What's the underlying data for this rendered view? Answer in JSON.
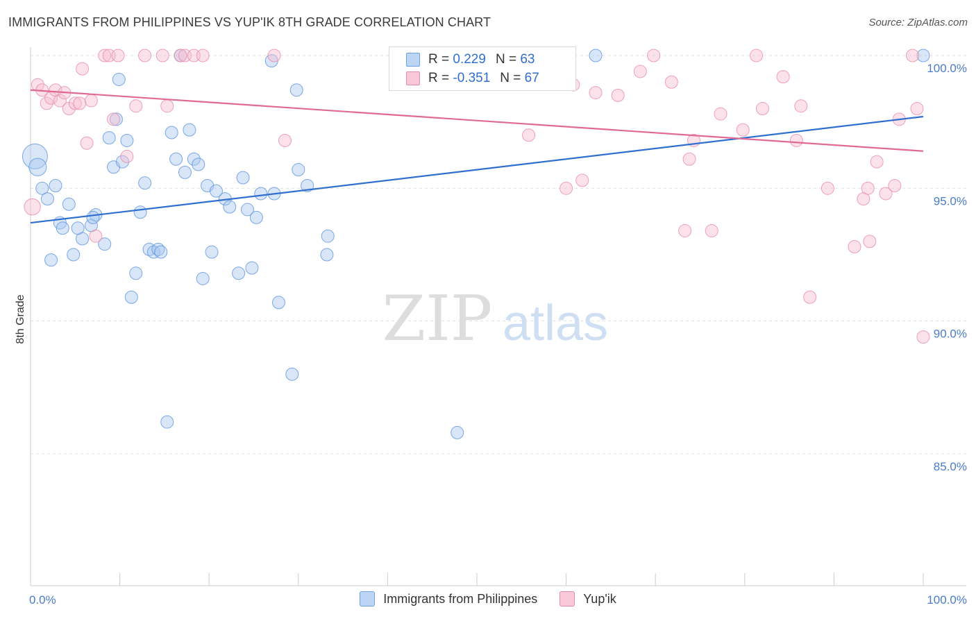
{
  "title": "IMMIGRANTS FROM PHILIPPINES VS YUP'IK 8TH GRADE CORRELATION CHART",
  "source": "Source: ZipAtlas.com",
  "watermark": {
    "zip": "ZIP",
    "atlas": "atlas"
  },
  "legend": {
    "r_label": "R =",
    "n_label": "N =",
    "rows": [
      {
        "r": "0.229",
        "n": "63"
      },
      {
        "r": "-0.351",
        "n": "67"
      }
    ]
  },
  "chart_data": {
    "type": "scatter",
    "title": "IMMIGRANTS FROM PHILIPPINES VS YUP'IK 8TH GRADE CORRELATION CHART",
    "xlabel": "",
    "ylabel": "8th Grade",
    "xlim": [
      0,
      100
    ],
    "ylim": [
      80.5,
      100.8
    ],
    "x_tick_labels": [
      "0.0%",
      "100.0%"
    ],
    "y_ticks": [
      {
        "value": 100,
        "label": "100.0%"
      },
      {
        "value": 95,
        "label": "95.0%"
      },
      {
        "value": 90,
        "label": "90.0%"
      },
      {
        "value": 85,
        "label": "85.0%"
      }
    ],
    "grid": "horizontal dashed",
    "legend_position": "top-center and bottom",
    "series": [
      {
        "name": "Immigrants from Philippines",
        "color": "#5b93e0",
        "fill": "#a9c8f0",
        "trend": {
          "x": [
            0,
            100
          ],
          "y": [
            93.7,
            97.7
          ],
          "color": "#2f6fd0"
        },
        "points": [
          [
            0.5,
            96.2,
            2
          ],
          [
            0.8,
            95.8,
            1.4
          ],
          [
            1.3,
            95.0,
            1
          ],
          [
            1.9,
            94.6,
            1
          ],
          [
            2.3,
            92.3,
            1
          ],
          [
            2.8,
            95.1,
            1
          ],
          [
            3.3,
            93.7,
            1
          ],
          [
            3.6,
            93.5,
            1
          ],
          [
            4.3,
            94.4,
            1
          ],
          [
            4.8,
            92.5,
            1
          ],
          [
            5.8,
            93.1,
            1
          ],
          [
            5.3,
            93.5,
            1
          ],
          [
            6.8,
            93.6,
            1
          ],
          [
            7.3,
            94.0,
            1
          ],
          [
            7.0,
            93.9,
            1
          ],
          [
            8.3,
            92.9,
            1
          ],
          [
            8.8,
            96.9,
            1
          ],
          [
            9.3,
            95.8,
            1
          ],
          [
            9.6,
            97.6,
            1
          ],
          [
            9.9,
            99.1,
            1
          ],
          [
            10.3,
            96.0,
            1
          ],
          [
            10.8,
            96.8,
            1
          ],
          [
            11.3,
            90.9,
            1
          ],
          [
            11.8,
            91.8,
            1
          ],
          [
            12.3,
            94.1,
            1
          ],
          [
            12.8,
            95.2,
            1
          ],
          [
            13.3,
            92.7,
            1
          ],
          [
            13.8,
            92.6,
            1
          ],
          [
            14.3,
            92.7,
            1
          ],
          [
            14.6,
            92.6,
            1
          ],
          [
            15.3,
            86.2,
            1
          ],
          [
            15.8,
            97.1,
            1
          ],
          [
            16.3,
            96.1,
            1
          ],
          [
            16.8,
            100.0,
            1
          ],
          [
            17.3,
            95.6,
            1
          ],
          [
            17.8,
            97.2,
            1
          ],
          [
            18.3,
            96.1,
            1
          ],
          [
            18.8,
            95.9,
            1
          ],
          [
            19.3,
            91.6,
            1
          ],
          [
            19.8,
            95.1,
            1
          ],
          [
            20.3,
            92.6,
            1
          ],
          [
            20.8,
            94.9,
            1
          ],
          [
            21.8,
            94.6,
            1
          ],
          [
            22.3,
            94.3,
            1
          ],
          [
            23.3,
            91.8,
            1
          ],
          [
            23.8,
            95.4,
            1
          ],
          [
            24.3,
            94.2,
            1
          ],
          [
            24.8,
            92.0,
            1
          ],
          [
            25.3,
            93.9,
            1
          ],
          [
            25.8,
            94.8,
            1
          ],
          [
            27.3,
            94.8,
            1
          ],
          [
            27.0,
            99.8,
            1
          ],
          [
            27.8,
            90.7,
            1
          ],
          [
            29.3,
            88.0,
            1
          ],
          [
            29.8,
            98.7,
            1
          ],
          [
            30.0,
            95.7,
            1
          ],
          [
            31.0,
            95.1,
            1
          ],
          [
            33.3,
            93.2,
            1
          ],
          [
            33.2,
            92.5,
            1
          ],
          [
            47.8,
            85.8,
            1
          ],
          [
            59.8,
            100.0,
            1
          ],
          [
            63.3,
            100.0,
            1
          ],
          [
            100,
            100.0,
            1
          ]
        ]
      },
      {
        "name": "Yup'ik",
        "color": "#e88aaa",
        "fill": "#f6bfd1",
        "trend": {
          "x": [
            0,
            100
          ],
          "y": [
            98.7,
            96.4
          ],
          "color": "#e06a92"
        },
        "points": [
          [
            0.2,
            94.3,
            1.3
          ],
          [
            0.8,
            98.9,
            1
          ],
          [
            1.3,
            98.7,
            1
          ],
          [
            1.8,
            98.2,
            1
          ],
          [
            2.3,
            98.4,
            1
          ],
          [
            2.8,
            98.7,
            1
          ],
          [
            3.3,
            98.3,
            1
          ],
          [
            3.8,
            98.6,
            1
          ],
          [
            4.3,
            98.0,
            1
          ],
          [
            5.0,
            98.2,
            1
          ],
          [
            5.5,
            98.2,
            1
          ],
          [
            5.8,
            99.5,
            1
          ],
          [
            6.3,
            96.7,
            1
          ],
          [
            6.8,
            98.3,
            1
          ],
          [
            7.3,
            93.2,
            1
          ],
          [
            8.3,
            100.0,
            1
          ],
          [
            8.8,
            100.0,
            1
          ],
          [
            9.3,
            97.6,
            1
          ],
          [
            9.8,
            100.0,
            1
          ],
          [
            10.8,
            96.2,
            1
          ],
          [
            11.8,
            98.1,
            1
          ],
          [
            12.8,
            100.0,
            1
          ],
          [
            14.8,
            100.0,
            1
          ],
          [
            15.3,
            98.1,
            1
          ],
          [
            16.8,
            100.0,
            1
          ],
          [
            17.3,
            100.0,
            1
          ],
          [
            18.3,
            100.0,
            1
          ],
          [
            19.3,
            100.0,
            1
          ],
          [
            27.3,
            100.0,
            1
          ],
          [
            28.5,
            96.8,
            1
          ],
          [
            42.5,
            100.0,
            1
          ],
          [
            47.8,
            100.0,
            1
          ],
          [
            49.8,
            100.0,
            1
          ],
          [
            55.8,
            97.0,
            1
          ],
          [
            58.8,
            99.6,
            1
          ],
          [
            60.0,
            95.0,
            1
          ],
          [
            60.8,
            98.9,
            1
          ],
          [
            61.8,
            95.3,
            1
          ],
          [
            63.3,
            98.6,
            1
          ],
          [
            65.8,
            98.5,
            1
          ],
          [
            68.3,
            99.4,
            1
          ],
          [
            69.8,
            100.0,
            1
          ],
          [
            71.8,
            99.0,
            1
          ],
          [
            73.3,
            93.4,
            1
          ],
          [
            73.8,
            96.1,
            1
          ],
          [
            74.3,
            96.8,
            1
          ],
          [
            76.3,
            93.4,
            1
          ],
          [
            77.3,
            97.8,
            1
          ],
          [
            79.8,
            97.2,
            1
          ],
          [
            81.3,
            100.0,
            1
          ],
          [
            82.0,
            98.0,
            1
          ],
          [
            84.3,
            99.2,
            1
          ],
          [
            85.8,
            96.8,
            1
          ],
          [
            86.3,
            98.1,
            1
          ],
          [
            87.3,
            90.9,
            1
          ],
          [
            89.3,
            95.0,
            1
          ],
          [
            92.3,
            92.8,
            1
          ],
          [
            93.3,
            94.6,
            1
          ],
          [
            93.8,
            95.0,
            1
          ],
          [
            94.0,
            93.0,
            1
          ],
          [
            94.8,
            96.0,
            1
          ],
          [
            95.8,
            94.8,
            1
          ],
          [
            96.8,
            95.1,
            1
          ],
          [
            97.3,
            97.6,
            1
          ],
          [
            98.8,
            100.0,
            1
          ],
          [
            99.3,
            98.0,
            1
          ],
          [
            100.0,
            89.4,
            1
          ]
        ]
      }
    ]
  }
}
